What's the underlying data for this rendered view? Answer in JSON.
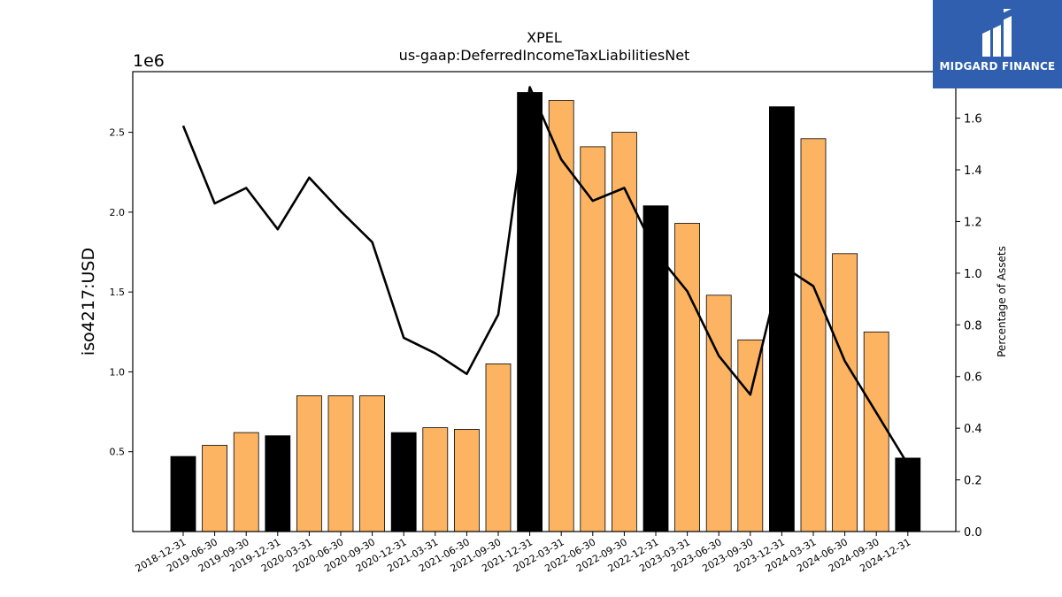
{
  "chart_data": {
    "type": "bar",
    "title": "XPEL",
    "subtitle": "us-gaap:DeferredIncomeTaxLiabilitiesNet",
    "ylabel": "iso4217:USD",
    "y_offset_label": "1e6",
    "y2label": "Percentage of Assets",
    "ylim": [
      0,
      2.88
    ],
    "y2lim": [
      0,
      1.78
    ],
    "yticks": [
      "0.5",
      "1.0",
      "1.5",
      "2.0",
      "2.5"
    ],
    "y2ticks": [
      "0.0",
      "0.2",
      "0.4",
      "0.6",
      "0.8",
      "1.0",
      "1.2",
      "1.4",
      "1.6"
    ],
    "categories": [
      "2018-12-31",
      "2019-06-30",
      "2019-09-30",
      "2019-12-31",
      "2020-03-31",
      "2020-06-30",
      "2020-09-30",
      "2020-12-31",
      "2021-03-31",
      "2021-06-30",
      "2021-09-30",
      "2021-12-31",
      "2022-03-31",
      "2022-06-30",
      "2022-09-30",
      "2022-12-31",
      "2023-03-31",
      "2023-06-30",
      "2023-09-30",
      "2023-12-31",
      "2024-03-31",
      "2024-06-30",
      "2024-09-30",
      "2024-12-31"
    ],
    "series": [
      {
        "type": "bar",
        "values": [
          0.47,
          0.54,
          0.62,
          0.6,
          0.85,
          0.85,
          0.85,
          0.62,
          0.65,
          0.64,
          1.05,
          2.75,
          2.7,
          2.41,
          2.5,
          2.04,
          1.93,
          1.48,
          1.2,
          2.66,
          2.46,
          1.74,
          1.25,
          0.46
        ],
        "annual_flags": [
          true,
          false,
          false,
          true,
          false,
          false,
          false,
          true,
          false,
          false,
          false,
          true,
          false,
          false,
          false,
          true,
          false,
          false,
          false,
          true,
          false,
          false,
          false,
          true
        ]
      },
      {
        "type": "line",
        "axis": "right",
        "values": [
          1.57,
          1.27,
          1.33,
          1.17,
          1.37,
          1.24,
          1.12,
          0.75,
          0.69,
          0.61,
          0.84,
          1.72,
          1.44,
          1.28,
          1.33,
          1.08,
          0.93,
          0.68,
          0.53,
          1.03,
          0.95,
          0.66,
          0.46,
          0.26
        ]
      }
    ],
    "colors": {
      "annual": "#000000",
      "quarterly": "#fdb462",
      "line": "#000000"
    },
    "grid": false,
    "legend": "none"
  },
  "logo": {
    "text": "MIDGARD FINANCE",
    "icon": "midgard-logo-icon"
  }
}
